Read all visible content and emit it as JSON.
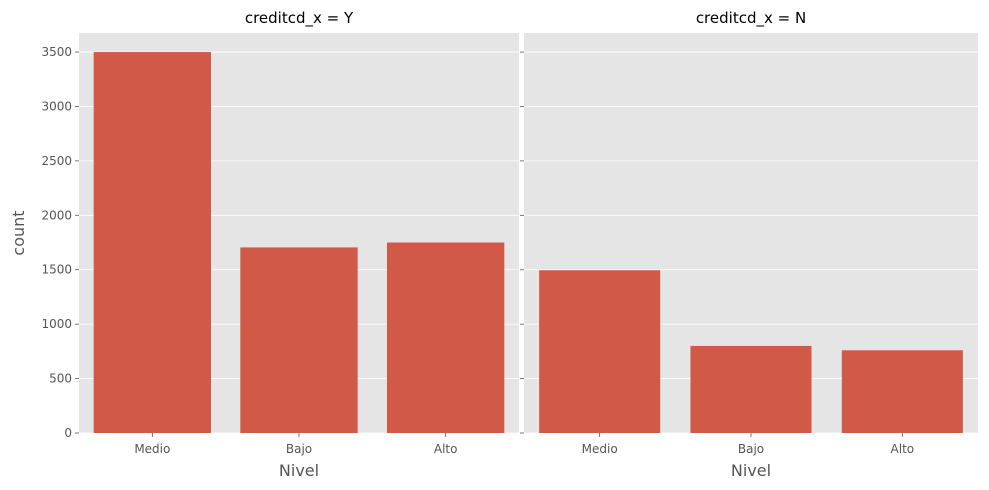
{
  "chart_data": {
    "type": "bar",
    "ylabel": "count",
    "ylim": [
      0,
      3675
    ],
    "yticks": [
      "0",
      "500",
      "1000",
      "1500",
      "2000",
      "2500",
      "3000",
      "3500"
    ],
    "shared_y": true,
    "grid": true,
    "colors": {
      "bar": "#d05a47",
      "panel": "#e5e5e5",
      "grid": "#ffffff"
    },
    "panels": [
      {
        "title": "creditcd_x = Y",
        "xlabel": "Nivel",
        "categories": [
          "Medio",
          "Bajo",
          "Alto"
        ],
        "values": [
          3500,
          1705,
          1750
        ]
      },
      {
        "title": "creditcd_x = N",
        "xlabel": "Nivel",
        "categories": [
          "Medio",
          "Bajo",
          "Alto"
        ],
        "values": [
          1495,
          800,
          760
        ]
      }
    ]
  }
}
